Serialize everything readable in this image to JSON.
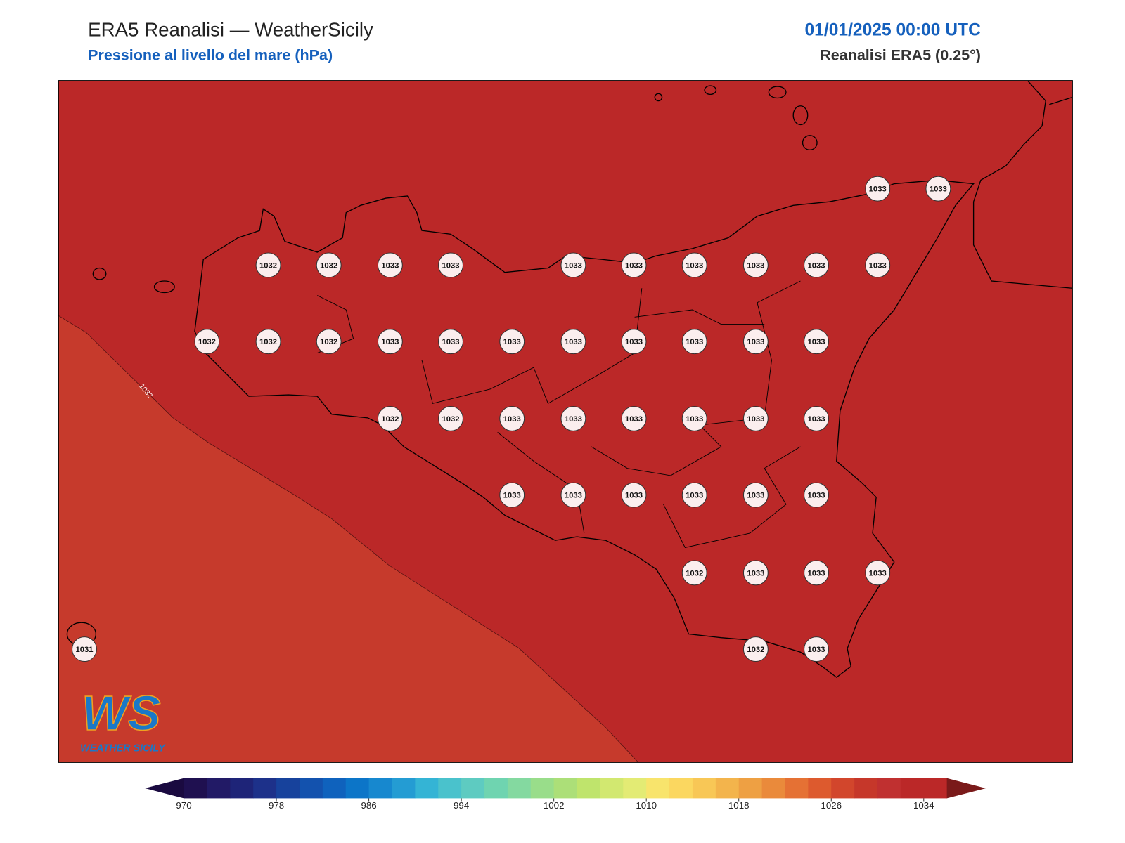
{
  "header": {
    "title": "ERA5 Reanalisi — WeatherSicily",
    "subtitle": "Pressione al livello del mare (hPa)",
    "datetime": "01/01/2025 00:00 UTC",
    "source": "Reanalisi ERA5 (0.25°)"
  },
  "map": {
    "background_color": "#bb2828",
    "low_region_color": "#c63a2c",
    "contour_label": "1032",
    "stations": {
      "values": [
        1033,
        1033,
        1032,
        1032,
        1033,
        1033,
        1033,
        1033,
        1033,
        1033,
        1033,
        1033,
        1032,
        1032,
        1032,
        1033,
        1033,
        1033,
        1033,
        1033,
        1033,
        1033,
        1033,
        1032,
        1032,
        1033,
        1033,
        1033,
        1033,
        1033,
        1033,
        1033,
        1033,
        1033,
        1033,
        1033,
        1033,
        1032,
        1033,
        1033,
        1033,
        1031,
        1032,
        1033
      ]
    }
  },
  "colorbar": {
    "lim": [
      970,
      1036
    ],
    "ticks": [
      970,
      978,
      986,
      994,
      1002,
      1010,
      1018,
      1026,
      1034
    ],
    "colors": [
      "#1f1050",
      "#221a66",
      "#1e2478",
      "#1d318a",
      "#17429c",
      "#1352ae",
      "#0f62bd",
      "#0c75c8",
      "#1788cf",
      "#249cd3",
      "#34b4d5",
      "#4ac2cc",
      "#5ecbc1",
      "#6fd4b0",
      "#84d9a0",
      "#99dd8a",
      "#acdf78",
      "#bfe46c",
      "#d2e870",
      "#e3eb74",
      "#f8e46c",
      "#fbd760",
      "#f8c756",
      "#f3b44c",
      "#eea043",
      "#ea8a3b",
      "#e57134",
      "#dd5a2e",
      "#d2462c",
      "#c6372a",
      "#c03030",
      "#bb2828",
      "#bb2828"
    ],
    "extend_colors": [
      "#1a0a40",
      "#7a1a1a"
    ]
  },
  "logo": {
    "text": "WS",
    "subtext": "WEATHER SICILY"
  }
}
